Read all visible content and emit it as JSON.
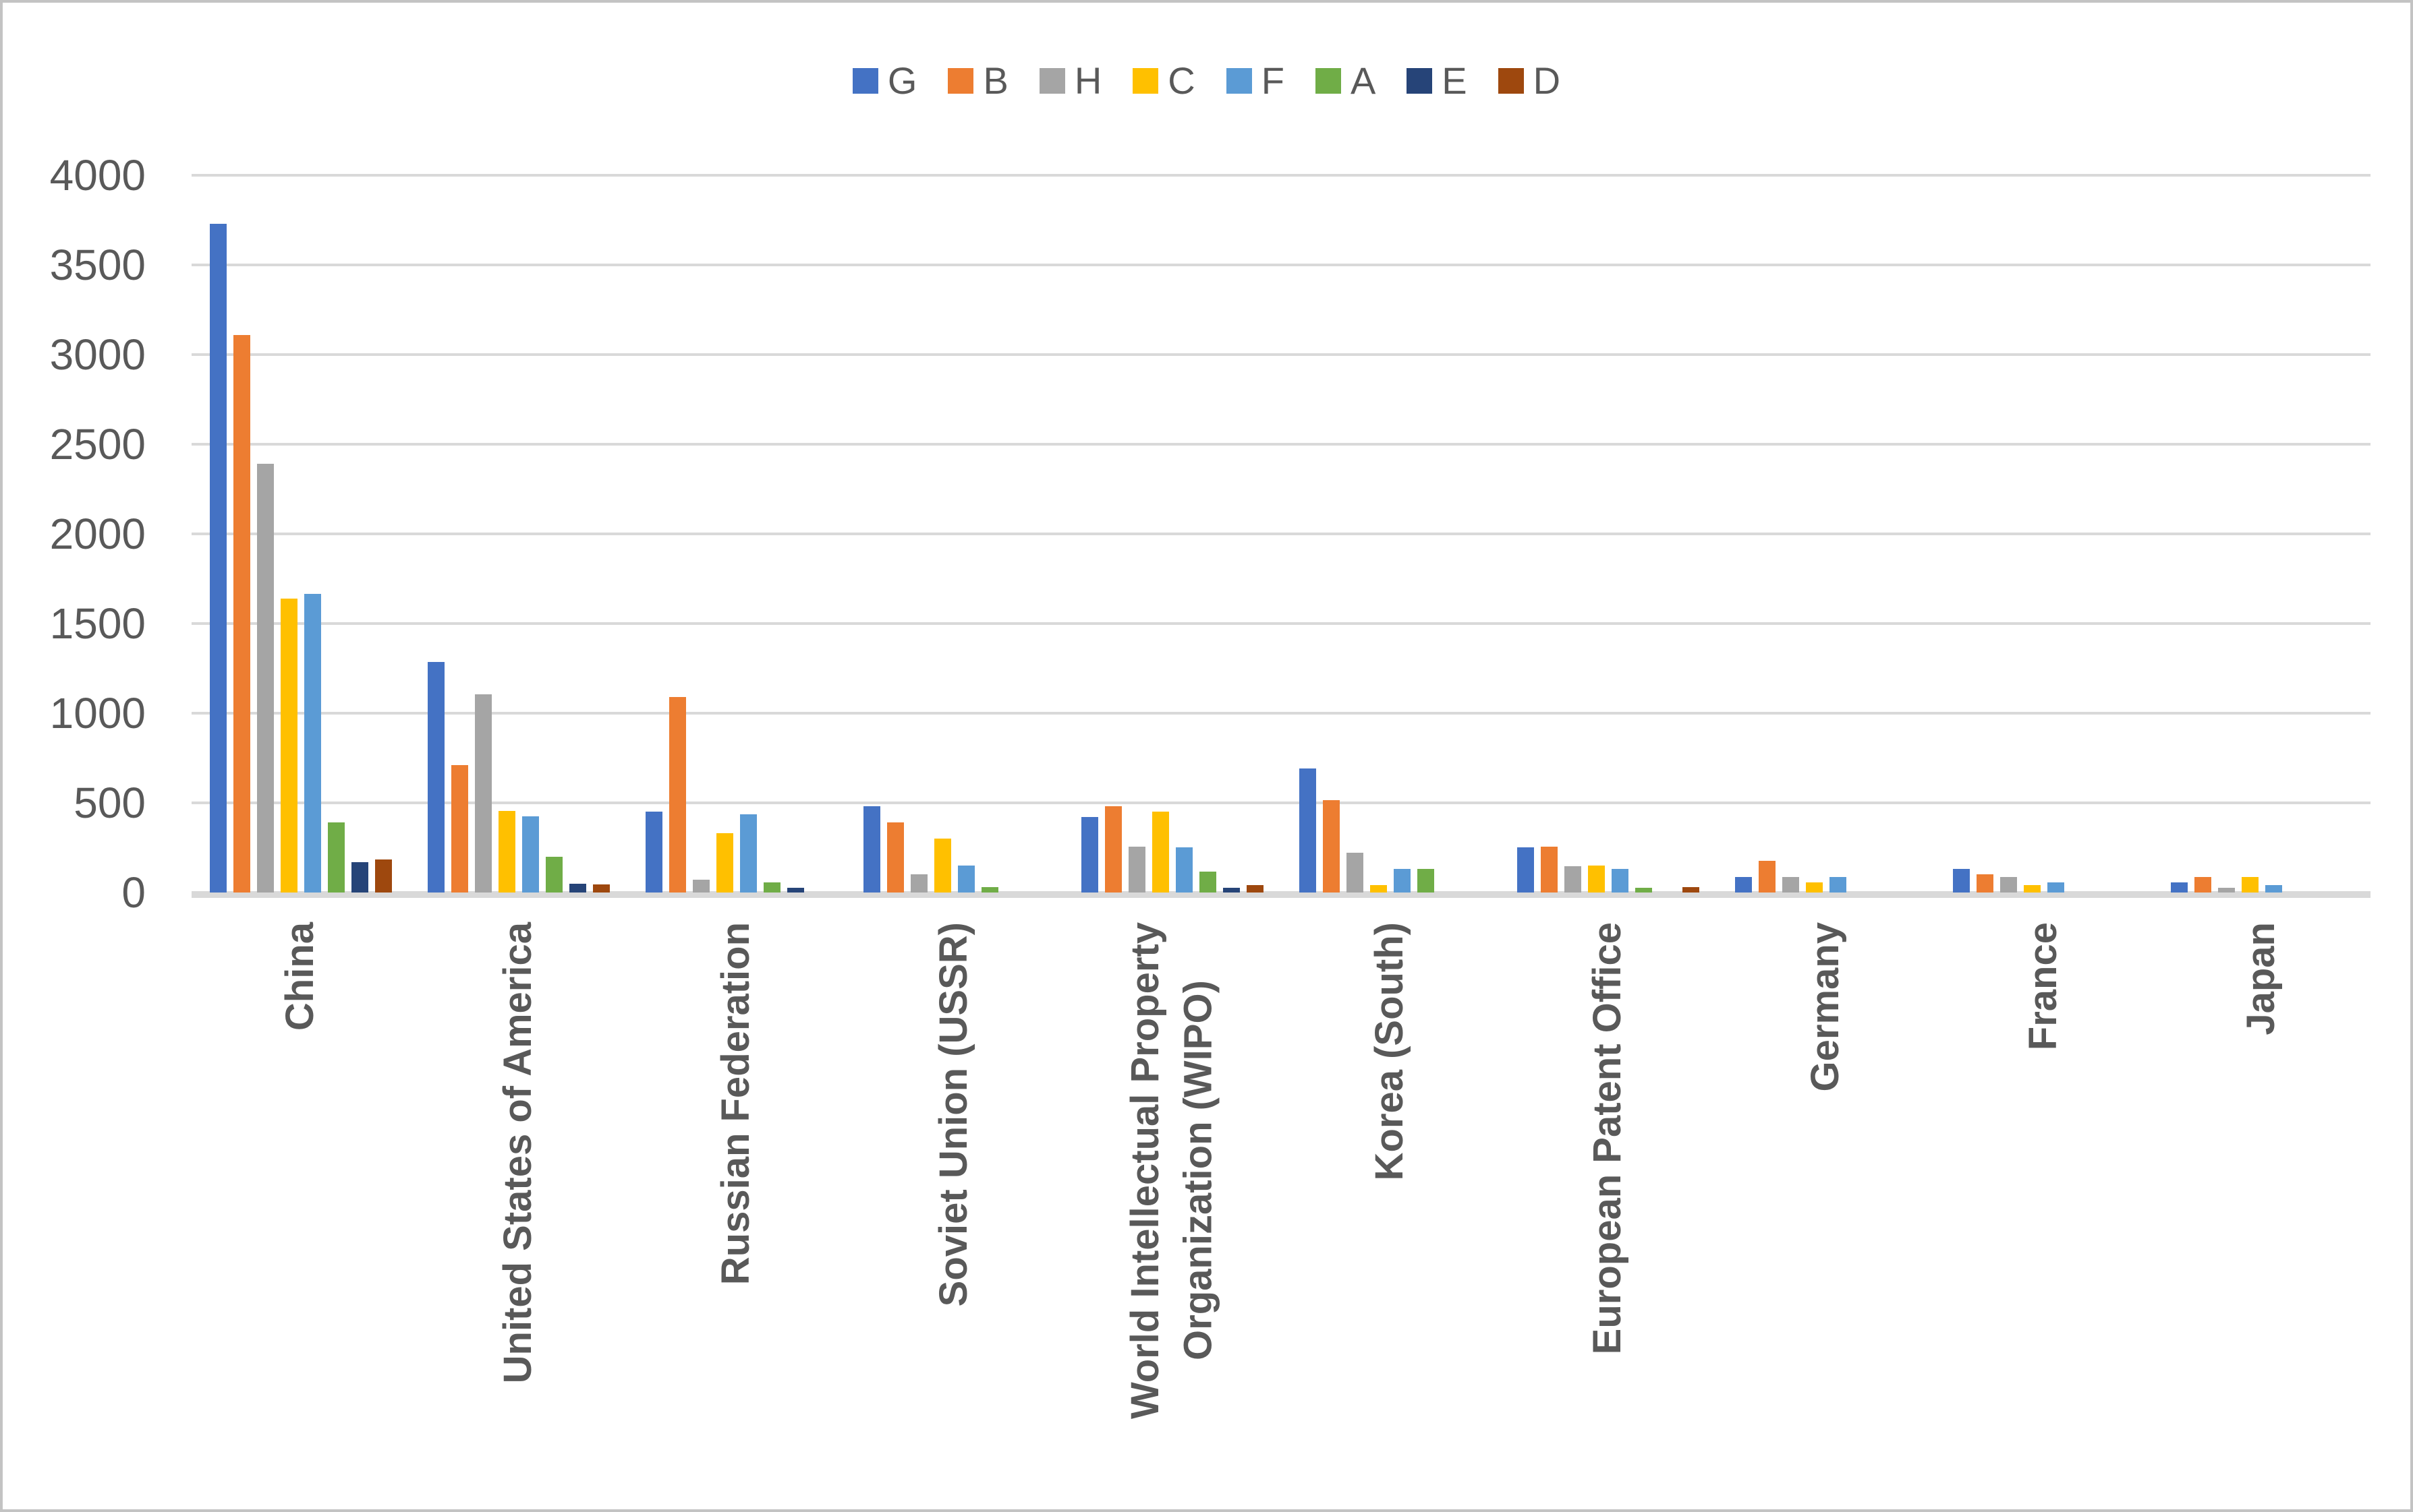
{
  "chart": {
    "title": "",
    "legend_items": [
      {
        "label": "G",
        "color": "#4472C4"
      },
      {
        "label": "B",
        "color": "#ED7D31"
      },
      {
        "label": "H",
        "color": "#A5A5A5"
      },
      {
        "label": "C",
        "color": "#FFC000"
      },
      {
        "label": "F",
        "color": "#5B9BD5"
      },
      {
        "label": "A",
        "color": "#70AD47"
      },
      {
        "label": "E",
        "color": "#264478"
      },
      {
        "label": "D",
        "color": "#9E480E"
      }
    ],
    "gridline_color": "#D9D9D9",
    "axis_text_color": "#595959",
    "background_color": "#FFFFFF"
  },
  "chart_data": {
    "type": "bar",
    "title": "",
    "xlabel": "",
    "ylabel": "",
    "ylim": [
      0,
      4000
    ],
    "yticks": [
      0,
      500,
      1000,
      1500,
      2000,
      2500,
      3000,
      3500,
      4000
    ],
    "grid": true,
    "legend_position": "top",
    "categories": [
      "China",
      "United States of America",
      "Russian Federation",
      "Soviet Union (USSR)",
      "World Intellectual Property\nOrganization (WIPO)",
      "Korea (South)",
      "European Patent Office",
      "Germany",
      "France",
      "Japan"
    ],
    "series": [
      {
        "name": "G",
        "color": "#4472C4",
        "values": [
          3730,
          1285,
          450,
          480,
          420,
          690,
          250,
          85,
          130,
          55
        ]
      },
      {
        "name": "B",
        "color": "#ED7D31",
        "values": [
          3110,
          710,
          1090,
          390,
          480,
          515,
          255,
          175,
          100,
          85
        ]
      },
      {
        "name": "H",
        "color": "#A5A5A5",
        "values": [
          2390,
          1105,
          70,
          100,
          255,
          220,
          145,
          85,
          85,
          25
        ]
      },
      {
        "name": "C",
        "color": "#FFC000",
        "values": [
          1640,
          455,
          330,
          300,
          450,
          40,
          150,
          55,
          40,
          85
        ]
      },
      {
        "name": "F",
        "color": "#5B9BD5",
        "values": [
          1665,
          425,
          435,
          150,
          250,
          130,
          130,
          85,
          55,
          40
        ]
      },
      {
        "name": "A",
        "color": "#70AD47",
        "values": [
          390,
          200,
          55,
          30,
          115,
          130,
          25,
          0,
          0,
          0
        ]
      },
      {
        "name": "E",
        "color": "#264478",
        "values": [
          170,
          50,
          25,
          0,
          25,
          0,
          0,
          0,
          0,
          0
        ]
      },
      {
        "name": "D",
        "color": "#9E480E",
        "values": [
          185,
          45,
          0,
          0,
          40,
          0,
          30,
          0,
          0,
          0
        ]
      }
    ]
  }
}
